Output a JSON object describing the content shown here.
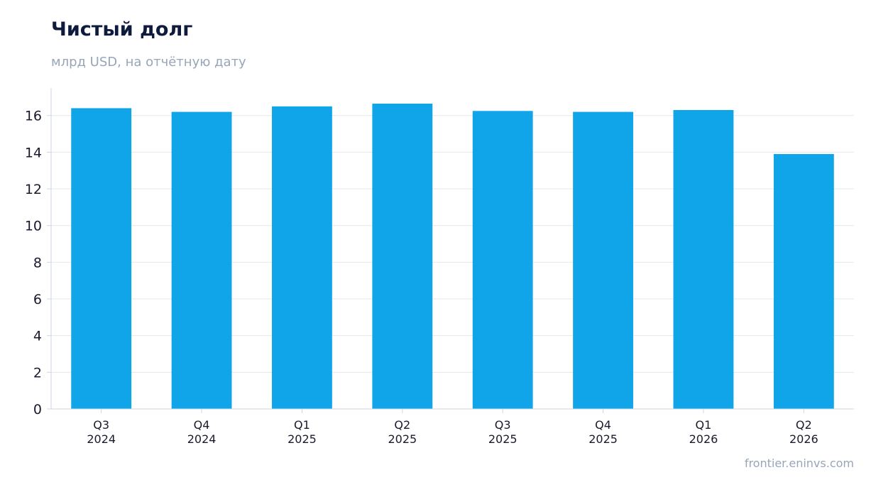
{
  "title": "Чистый долг",
  "subtitle": "млрд USD, на отчётную дату",
  "source": "frontier.eninvs.com",
  "colors": {
    "bar": "#10a5e8",
    "grid": "#e3e8ef",
    "axis": "#cfd6e0",
    "tick_text": "#1a1a2e",
    "title": "#0f1b3d",
    "muted": "#97a6b8"
  },
  "chart_data": {
    "type": "bar",
    "categories": [
      [
        "Q3",
        "2024"
      ],
      [
        "Q4",
        "2024"
      ],
      [
        "Q1",
        "2025"
      ],
      [
        "Q2",
        "2025"
      ],
      [
        "Q3",
        "2025"
      ],
      [
        "Q4",
        "2025"
      ],
      [
        "Q1",
        "2026"
      ],
      [
        "Q2",
        "2026"
      ]
    ],
    "values": [
      16.4,
      16.2,
      16.5,
      16.65,
      16.25,
      16.2,
      16.3,
      13.9
    ],
    "ylim": [
      0,
      17.5
    ],
    "yticks": [
      0,
      2,
      4,
      6,
      8,
      10,
      12,
      14,
      16
    ],
    "grid": true
  }
}
